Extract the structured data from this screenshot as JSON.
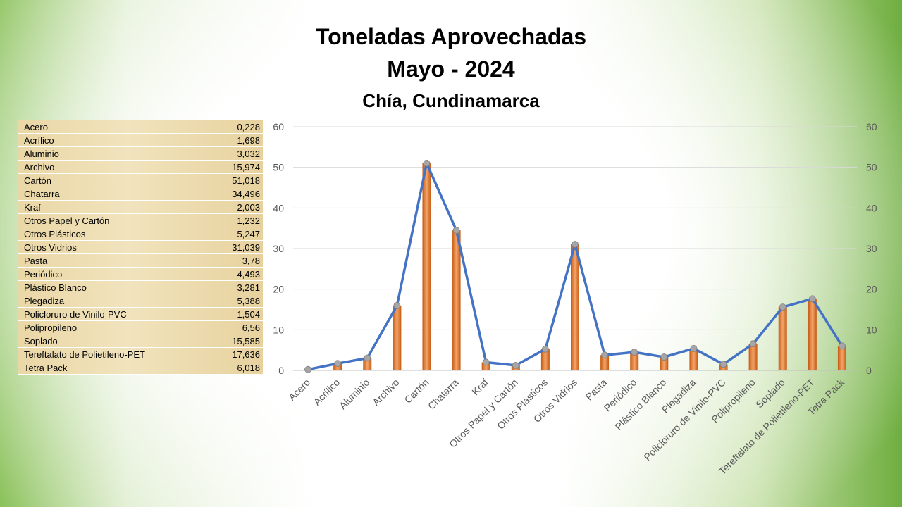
{
  "title": "Toneladas Aprovechadas",
  "subtitle": "Mayo - 2024",
  "location": "Chía, Cundinamarca",
  "colors": {
    "bar": "#ed7d31",
    "line": "#4472c4",
    "marker": "#a6a6a6"
  },
  "chart_data": {
    "type": "bar",
    "categories": [
      "Acero",
      "Acrílico",
      "Aluminio",
      "Archivo",
      "Cartón",
      "Chatarra",
      "Kraf",
      "Otros Papel y Cartón",
      "Otros Plásticos",
      "Otros Vidrios",
      "Pasta",
      "Periódico",
      "Plástico Blanco",
      "Plegadiza",
      "Policloruro de Vinilo-PVC",
      "Polipropileno",
      "Soplado",
      "Tereftalato de Polietileno-PET",
      "Tetra Pack"
    ],
    "values": [
      0.228,
      1.698,
      3.032,
      15.974,
      51.018,
      34.496,
      2.003,
      1.232,
      5.247,
      31.039,
      3.78,
      4.493,
      3.281,
      5.388,
      1.504,
      6.56,
      15.585,
      17.636,
      6.018
    ],
    "value_labels": [
      "0,228",
      "1,698",
      "3,032",
      "15,974",
      "51,018",
      "34,496",
      "2,003",
      "1,232",
      "5,247",
      "31,039",
      "3,78",
      "4,493",
      "3,281",
      "5,388",
      "1,504",
      "6,56",
      "15,585",
      "17,636",
      "6,018"
    ],
    "overlay": "line with markers on same values",
    "ylim": [
      0,
      60
    ],
    "yticks": [
      0,
      10,
      20,
      30,
      40,
      50,
      60
    ],
    "secondary_ylim": [
      0,
      60
    ],
    "grid": true,
    "legend": "none"
  }
}
